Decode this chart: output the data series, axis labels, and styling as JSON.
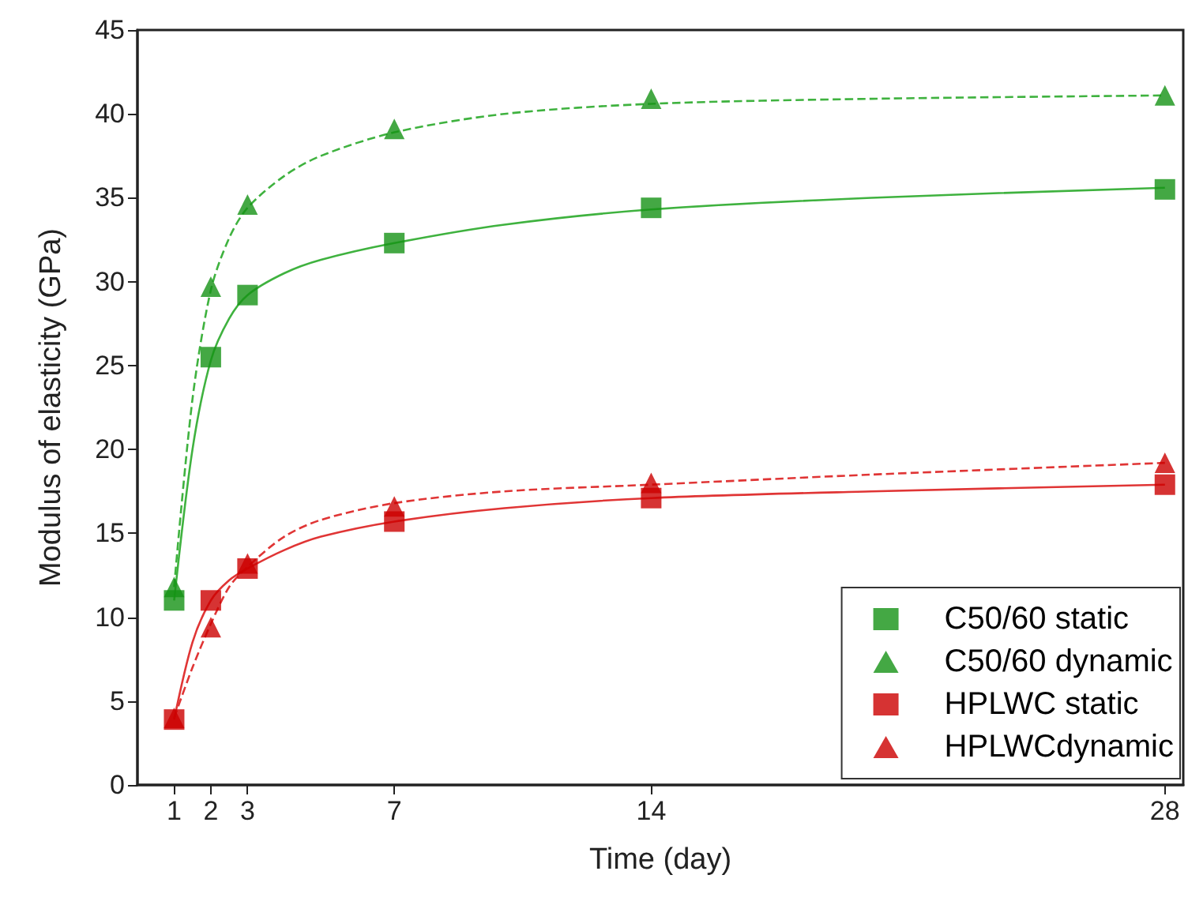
{
  "chart_data": {
    "type": "scatter",
    "xlabel": "Time (day)",
    "ylabel": "Modulus of elasticity (GPa)",
    "xlim": [
      0,
      28.5
    ],
    "xticks": [
      1,
      2,
      3,
      7,
      14,
      28
    ],
    "ylim": [
      0,
      45
    ],
    "yticks": [
      0,
      5,
      10,
      15,
      20,
      25,
      30,
      35,
      40,
      45
    ],
    "grid": false,
    "legend": "bottom right",
    "series": [
      {
        "name": "C50/60 static",
        "marker": "square",
        "color": "#159215",
        "x": [
          1,
          2,
          3,
          7,
          14,
          28
        ],
        "values": [
          11,
          25.5,
          29.2,
          32.3,
          34.4,
          35.5
        ]
      },
      {
        "name": "C50/60 dynamic",
        "marker": "triangle",
        "color": "#159215",
        "x": [
          1,
          2,
          3,
          7,
          14,
          28
        ],
        "values": [
          11.8,
          29.7,
          34.6,
          39.1,
          40.9,
          41.1
        ]
      },
      {
        "name": "HPLWC static",
        "marker": "square",
        "color": "#cc0000",
        "x": [
          1,
          2,
          3,
          7,
          14,
          28
        ],
        "values": [
          3.9,
          11,
          12.9,
          15.7,
          17.1,
          17.9
        ]
      },
      {
        "name": "HPLWCdynamic",
        "marker": "triangle",
        "color": "#cc0000",
        "x": [
          1,
          2,
          3,
          7,
          14,
          28
        ],
        "values": [
          4,
          9.4,
          13.2,
          16.6,
          18,
          19.2
        ]
      },
      {
        "type": "line",
        "line_style": "solid",
        "color": "#3fb23f",
        "x": [
          1,
          1.5,
          2,
          2.5,
          3,
          4,
          5,
          7,
          10,
          14,
          20,
          28
        ],
        "values": [
          11,
          20,
          25.3,
          27.8,
          29.2,
          30.5,
          31.3,
          32.3,
          33.4,
          34.3,
          35,
          35.6
        ]
      },
      {
        "type": "line",
        "line_style": "dashed",
        "color": "#3fb23f",
        "x": [
          1,
          1.5,
          2,
          2.5,
          3,
          4,
          5,
          7,
          10,
          14,
          20,
          28
        ],
        "values": [
          11.8,
          23,
          29.5,
          32.6,
          34.4,
          36.3,
          37.5,
          38.9,
          40,
          40.6,
          40.9,
          41.1
        ]
      },
      {
        "type": "line",
        "line_style": "solid",
        "color": "#e03535",
        "x": [
          1,
          1.5,
          2,
          2.5,
          3,
          4,
          5,
          7,
          10,
          14,
          20,
          28
        ],
        "values": [
          3.9,
          8.5,
          11,
          12.2,
          12.9,
          14,
          14.8,
          15.7,
          16.5,
          17.1,
          17.5,
          17.9
        ]
      },
      {
        "type": "line",
        "line_style": "dashed",
        "color": "#e03535",
        "x": [
          1,
          1.5,
          2,
          2.5,
          3,
          4,
          5,
          7,
          10,
          14,
          20,
          28
        ],
        "values": [
          4,
          7,
          9.6,
          11.8,
          13,
          14.8,
          15.8,
          16.8,
          17.5,
          17.9,
          18.5,
          19.2
        ]
      }
    ]
  }
}
